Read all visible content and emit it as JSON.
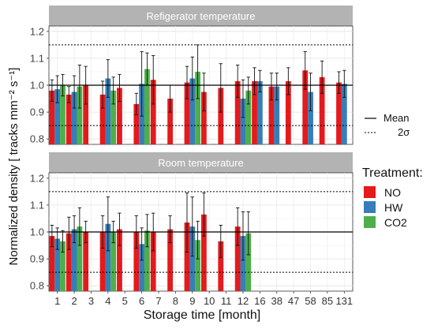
{
  "chart_data": {
    "type": "bar",
    "ylabel": "Normalized density [ tracks mm⁻² s⁻¹]",
    "xlabel": "Storage time [month]",
    "categories": [
      "1",
      "2",
      "3",
      "4",
      "5",
      "6",
      "7",
      "8",
      "9",
      "10",
      "11",
      "12",
      "16",
      "38",
      "47",
      "58",
      "85",
      "131"
    ],
    "ylim": [
      0.78,
      1.22
    ],
    "yticks": [
      "0.8",
      "0.9",
      "1.0",
      "1.1",
      "1.2"
    ],
    "grid": true,
    "reference_lines": [
      {
        "name": "Mean",
        "style": "solid",
        "value": 1.0
      },
      {
        "name": "2σ",
        "style": "dotted",
        "values": [
          0.85,
          1.15
        ]
      }
    ],
    "legend_title": "Treatment:",
    "colors": {
      "NO": "#e41a1c",
      "HW": "#377eb8",
      "CO2": "#4daf4a"
    },
    "panels": [
      {
        "title": "Refigerator temperature",
        "series": [
          {
            "name": "NO",
            "values": [
              0.98,
              0.965,
              1.0,
              0.965,
              0.99,
              0.93,
              1.02,
              0.95,
              1.01,
              0.975,
              0.99,
              1.015,
              1.015,
              0.995,
              1.015,
              1.055,
              1.03,
              1.01
            ],
            "errors": [
              0.04,
              0.03,
              0.07,
              0.05,
              0.05,
              0.04,
              0.09,
              0.05,
              0.06,
              0.07,
              0.09,
              0.06,
              0.05,
              0.05,
              0.05,
              0.07,
              0.06,
              0.04
            ]
          },
          {
            "name": "HW",
            "values": [
              0.985,
              0.975,
              null,
              1.025,
              null,
              1.005,
              null,
              null,
              1.025,
              null,
              null,
              0.95,
              1.015,
              0.995,
              null,
              0.975,
              null,
              1.005
            ],
            "errors": [
              0.05,
              0.06,
              null,
              0.07,
              null,
              0.12,
              null,
              null,
              0.08,
              null,
              null,
              0.07,
              0.04,
              0.05,
              null,
              0.07,
              null,
              0.05
            ]
          },
          {
            "name": "CO2",
            "values": [
              1.0,
              0.995,
              null,
              0.98,
              null,
              1.06,
              null,
              null,
              1.05,
              null,
              null,
              0.98,
              null,
              null,
              null,
              null,
              null,
              null
            ],
            "errors": [
              0.04,
              0.08,
              null,
              0.05,
              null,
              0.06,
              null,
              null,
              0.1,
              null,
              null,
              0.05,
              null,
              null,
              null,
              null,
              null,
              null
            ]
          }
        ]
      },
      {
        "title": "Room temperature",
        "series": [
          {
            "name": "NO",
            "values": [
              0.985,
              0.995,
              1.0,
              1.0,
              1.01,
              1.0,
              1.0,
              1.01,
              1.035,
              1.065,
              0.965,
              1.02,
              null,
              null,
              null,
              null,
              null,
              null
            ],
            "errors": [
              0.04,
              0.06,
              0.04,
              0.06,
              0.06,
              0.06,
              0.07,
              0.05,
              0.11,
              0.08,
              0.06,
              0.07,
              null,
              null,
              null,
              null,
              null,
              null
            ]
          },
          {
            "name": "HW",
            "values": [
              0.975,
              1.01,
              null,
              1.03,
              null,
              0.955,
              null,
              null,
              1.02,
              null,
              null,
              0.985,
              null,
              null,
              null,
              null,
              null,
              null
            ],
            "errors": [
              0.04,
              0.05,
              null,
              0.1,
              null,
              0.06,
              null,
              null,
              0.11,
              null,
              null,
              0.09,
              null,
              null,
              null,
              null,
              null,
              null
            ]
          },
          {
            "name": "CO2",
            "values": [
              0.965,
              1.02,
              null,
              1.0,
              null,
              1.005,
              null,
              null,
              0.97,
              null,
              null,
              0.995,
              null,
              null,
              null,
              null,
              null,
              null
            ],
            "errors": [
              0.04,
              0.07,
              null,
              0.04,
              null,
              0.06,
              null,
              null,
              0.07,
              null,
              null,
              0.08,
              null,
              null,
              null,
              null,
              null,
              null
            ]
          }
        ]
      }
    ]
  }
}
